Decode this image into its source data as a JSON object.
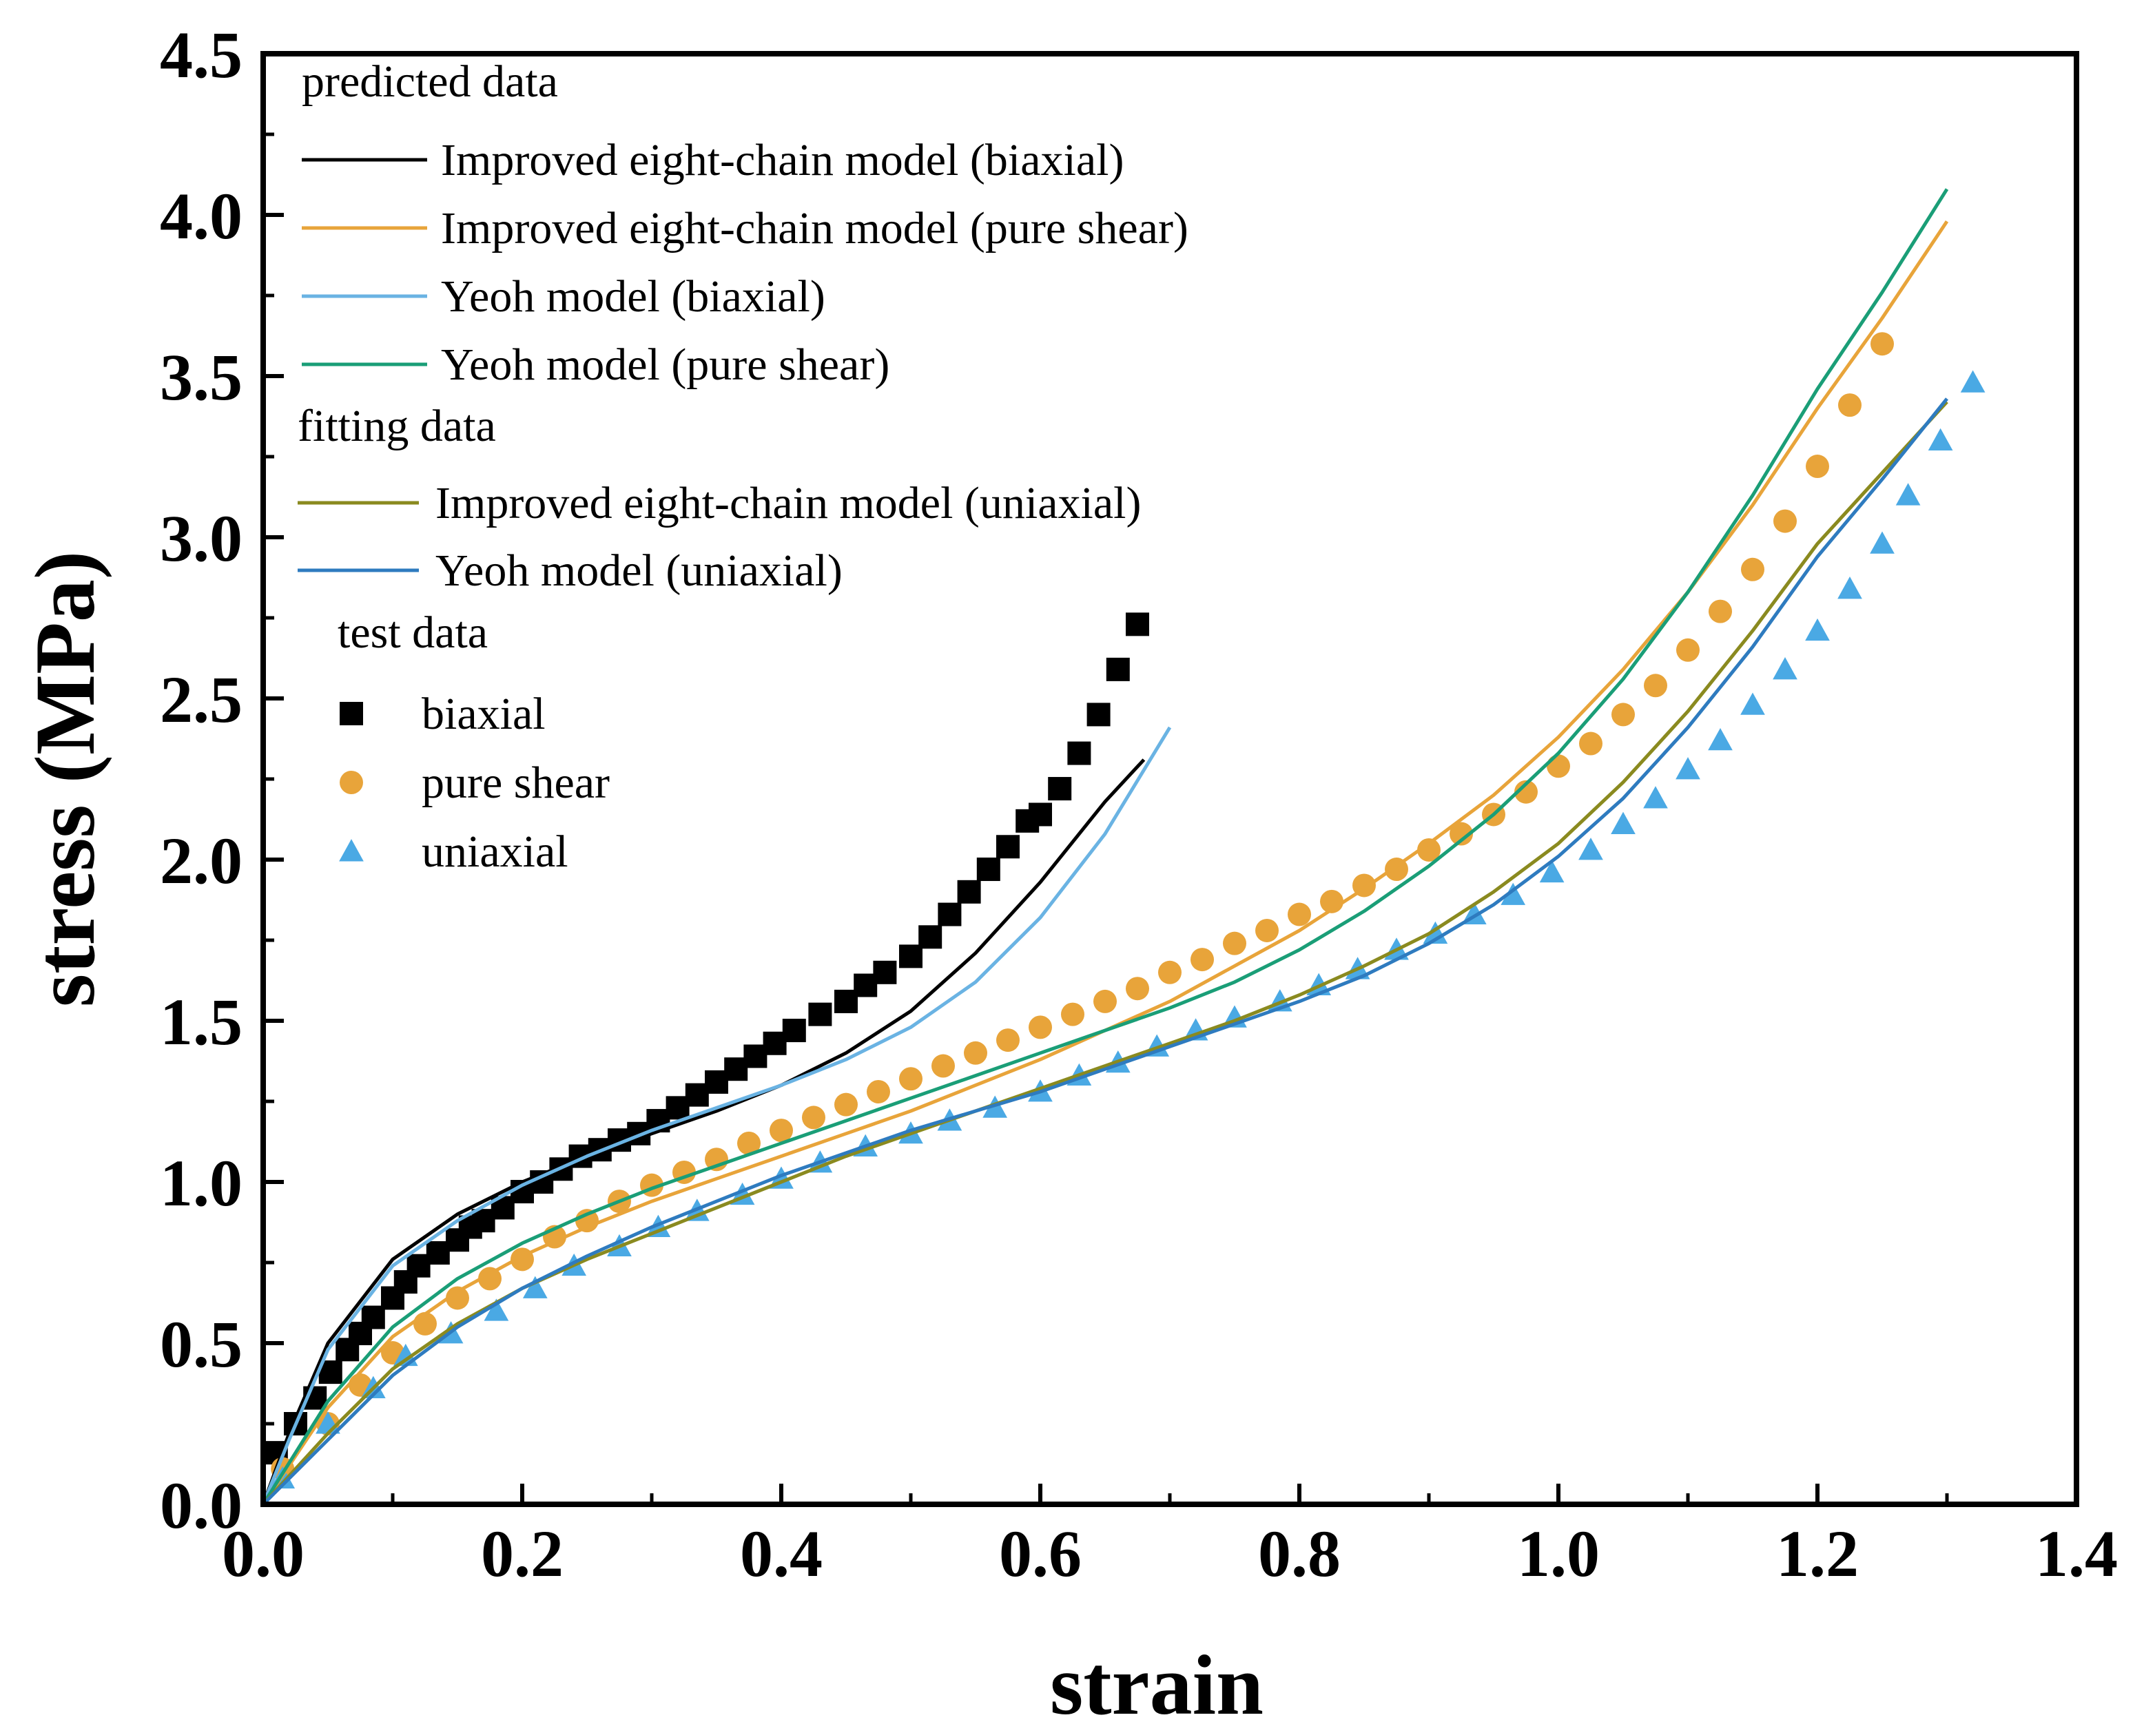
{
  "chart_data": {
    "type": "line",
    "title": "",
    "xlabel": "strain",
    "ylabel": "stress (MPa)",
    "xlim": [
      0.0,
      1.4
    ],
    "ylim": [
      0.0,
      4.5
    ],
    "x_ticks": [
      "0.0",
      "0.2",
      "0.4",
      "0.6",
      "0.8",
      "1.0",
      "1.2",
      "1.4"
    ],
    "y_ticks": [
      "0.0",
      "0.5",
      "1.0",
      "1.5",
      "2.0",
      "2.5",
      "3.0",
      "3.5",
      "4.0",
      "4.5"
    ],
    "grid": false,
    "legend_position": "top-left",
    "legend_groups": [
      {
        "title": "predicted data",
        "entries": [
          {
            "name": "Improved eight-chain model (biaxial)",
            "series": "iec_biaxial"
          },
          {
            "name": "Improved eight-chain model (pure shear)",
            "series": "iec_shear"
          },
          {
            "name": "Yeoh model (biaxial)",
            "series": "yeoh_biaxial"
          },
          {
            "name": "Yeoh model (pure shear)",
            "series": "yeoh_shear"
          }
        ]
      },
      {
        "title": "fitting data",
        "entries": [
          {
            "name": "Improved eight-chain model (uniaxial)",
            "series": "iec_uniaxial"
          },
          {
            "name": "Yeoh model (uniaxial)",
            "series": "yeoh_uniaxial"
          }
        ]
      },
      {
        "title": "test data",
        "entries": [
          {
            "name": "biaxial",
            "series": "test_biaxial"
          },
          {
            "name": "pure shear",
            "series": "test_shear"
          },
          {
            "name": "uniaxial",
            "series": "test_uniaxial"
          }
        ]
      }
    ],
    "series": [
      {
        "id": "iec_biaxial",
        "name": "Improved eight-chain model (biaxial)",
        "kind": "line",
        "color": "#000000",
        "x": [
          0.0,
          0.02,
          0.05,
          0.1,
          0.15,
          0.2,
          0.25,
          0.3,
          0.35,
          0.4,
          0.45,
          0.5,
          0.55,
          0.6,
          0.65,
          0.68
        ],
        "y": [
          0.0,
          0.22,
          0.5,
          0.76,
          0.9,
          1.0,
          1.08,
          1.15,
          1.22,
          1.3,
          1.4,
          1.53,
          1.71,
          1.93,
          2.18,
          2.31
        ]
      },
      {
        "id": "iec_shear",
        "name": "Improved eight-chain model (pure shear)",
        "kind": "line",
        "color": "#e8a43a",
        "x": [
          0.0,
          0.05,
          0.1,
          0.15,
          0.2,
          0.25,
          0.3,
          0.35,
          0.4,
          0.45,
          0.5,
          0.55,
          0.6,
          0.65,
          0.7,
          0.75,
          0.8,
          0.85,
          0.9,
          0.95,
          1.0,
          1.05,
          1.1,
          1.15,
          1.2,
          1.25,
          1.3
        ],
        "y": [
          0.0,
          0.3,
          0.52,
          0.66,
          0.77,
          0.86,
          0.94,
          1.01,
          1.08,
          1.15,
          1.22,
          1.3,
          1.38,
          1.47,
          1.56,
          1.67,
          1.78,
          1.91,
          2.05,
          2.2,
          2.38,
          2.59,
          2.83,
          3.1,
          3.4,
          3.68,
          3.98
        ]
      },
      {
        "id": "yeoh_biaxial",
        "name": "Yeoh model (biaxial)",
        "kind": "line",
        "color": "#6ab3e3",
        "x": [
          0.0,
          0.02,
          0.05,
          0.1,
          0.15,
          0.2,
          0.25,
          0.3,
          0.35,
          0.4,
          0.45,
          0.5,
          0.55,
          0.6,
          0.65,
          0.7
        ],
        "y": [
          0.0,
          0.2,
          0.48,
          0.74,
          0.88,
          0.99,
          1.08,
          1.16,
          1.23,
          1.3,
          1.38,
          1.48,
          1.62,
          1.82,
          2.08,
          2.41
        ]
      },
      {
        "id": "yeoh_shear",
        "name": "Yeoh model (pure shear)",
        "kind": "line",
        "color": "#1a9e77",
        "x": [
          0.0,
          0.05,
          0.1,
          0.15,
          0.2,
          0.25,
          0.3,
          0.35,
          0.4,
          0.45,
          0.5,
          0.55,
          0.6,
          0.65,
          0.7,
          0.75,
          0.8,
          0.85,
          0.9,
          0.95,
          1.0,
          1.05,
          1.1,
          1.15,
          1.2,
          1.25,
          1.3
        ],
        "y": [
          0.0,
          0.32,
          0.55,
          0.7,
          0.81,
          0.9,
          0.98,
          1.05,
          1.12,
          1.19,
          1.26,
          1.33,
          1.4,
          1.47,
          1.54,
          1.62,
          1.72,
          1.84,
          1.98,
          2.14,
          2.33,
          2.56,
          2.83,
          3.13,
          3.46,
          3.76,
          4.08
        ]
      },
      {
        "id": "iec_uniaxial",
        "name": "Improved eight-chain model (uniaxial)",
        "kind": "line",
        "color": "#8a8a1f",
        "x": [
          0.0,
          0.05,
          0.1,
          0.15,
          0.2,
          0.25,
          0.3,
          0.35,
          0.4,
          0.45,
          0.5,
          0.55,
          0.6,
          0.65,
          0.7,
          0.75,
          0.8,
          0.85,
          0.9,
          0.95,
          1.0,
          1.05,
          1.1,
          1.15,
          1.2,
          1.25,
          1.3
        ],
        "y": [
          0.0,
          0.22,
          0.42,
          0.56,
          0.67,
          0.76,
          0.84,
          0.92,
          1.0,
          1.08,
          1.15,
          1.22,
          1.29,
          1.36,
          1.43,
          1.5,
          1.58,
          1.67,
          1.77,
          1.9,
          2.05,
          2.24,
          2.46,
          2.71,
          2.98,
          3.2,
          3.42
        ]
      },
      {
        "id": "yeoh_uniaxial",
        "name": "Yeoh model (uniaxial)",
        "kind": "line",
        "color": "#2e7bbf",
        "x": [
          0.0,
          0.05,
          0.1,
          0.15,
          0.2,
          0.25,
          0.3,
          0.35,
          0.4,
          0.45,
          0.5,
          0.55,
          0.6,
          0.65,
          0.7,
          0.75,
          0.8,
          0.85,
          0.9,
          0.95,
          1.0,
          1.05,
          1.1,
          1.15,
          1.2,
          1.25,
          1.3
        ],
        "y": [
          0.0,
          0.2,
          0.4,
          0.55,
          0.67,
          0.77,
          0.86,
          0.94,
          1.02,
          1.09,
          1.16,
          1.22,
          1.28,
          1.35,
          1.42,
          1.49,
          1.56,
          1.64,
          1.74,
          1.86,
          2.01,
          2.19,
          2.41,
          2.66,
          2.94,
          3.18,
          3.43
        ]
      },
      {
        "id": "test_biaxial",
        "name": "biaxial",
        "kind": "square",
        "color": "#000000",
        "x": [
          0.01,
          0.025,
          0.04,
          0.052,
          0.065,
          0.075,
          0.085,
          0.1,
          0.11,
          0.12,
          0.135,
          0.15,
          0.16,
          0.17,
          0.185,
          0.2,
          0.215,
          0.23,
          0.245,
          0.26,
          0.275,
          0.29,
          0.305,
          0.32,
          0.335,
          0.35,
          0.365,
          0.38,
          0.395,
          0.41,
          0.43,
          0.45,
          0.465,
          0.48,
          0.5,
          0.515,
          0.53,
          0.545,
          0.56,
          0.575,
          0.59,
          0.6,
          0.615,
          0.63,
          0.645,
          0.66,
          0.675
        ],
        "y": [
          0.16,
          0.25,
          0.33,
          0.41,
          0.48,
          0.53,
          0.58,
          0.64,
          0.69,
          0.74,
          0.78,
          0.82,
          0.86,
          0.88,
          0.92,
          0.97,
          1.0,
          1.04,
          1.08,
          1.1,
          1.13,
          1.15,
          1.19,
          1.23,
          1.27,
          1.31,
          1.35,
          1.39,
          1.43,
          1.47,
          1.52,
          1.56,
          1.61,
          1.65,
          1.7,
          1.76,
          1.83,
          1.9,
          1.97,
          2.04,
          2.12,
          2.14,
          2.22,
          2.33,
          2.45,
          2.59,
          2.73
        ]
      },
      {
        "id": "test_shear",
        "name": "pure shear",
        "kind": "circle",
        "color": "#e8a43a",
        "x": [
          0.015,
          0.05,
          0.075,
          0.1,
          0.125,
          0.15,
          0.175,
          0.2,
          0.225,
          0.25,
          0.275,
          0.3,
          0.325,
          0.35,
          0.375,
          0.4,
          0.425,
          0.45,
          0.475,
          0.5,
          0.525,
          0.55,
          0.575,
          0.6,
          0.625,
          0.65,
          0.675,
          0.7,
          0.725,
          0.75,
          0.775,
          0.8,
          0.825,
          0.85,
          0.875,
          0.9,
          0.925,
          0.95,
          0.975,
          1.0,
          1.025,
          1.05,
          1.075,
          1.1,
          1.125,
          1.15,
          1.175,
          1.2,
          1.225,
          1.25
        ],
        "y": [
          0.11,
          0.25,
          0.37,
          0.47,
          0.56,
          0.64,
          0.7,
          0.76,
          0.83,
          0.88,
          0.94,
          0.99,
          1.03,
          1.07,
          1.12,
          1.16,
          1.2,
          1.24,
          1.28,
          1.32,
          1.36,
          1.4,
          1.44,
          1.48,
          1.52,
          1.56,
          1.6,
          1.65,
          1.69,
          1.74,
          1.78,
          1.83,
          1.87,
          1.92,
          1.97,
          2.03,
          2.08,
          2.14,
          2.21,
          2.29,
          2.36,
          2.45,
          2.54,
          2.65,
          2.77,
          2.9,
          3.05,
          3.22,
          3.41,
          3.6
        ]
      },
      {
        "id": "test_uniaxial",
        "name": "uniaxial",
        "kind": "triangle",
        "color": "#4aa9e4",
        "x": [
          0.015,
          0.05,
          0.085,
          0.11,
          0.145,
          0.18,
          0.21,
          0.24,
          0.275,
          0.305,
          0.335,
          0.37,
          0.4,
          0.43,
          0.465,
          0.5,
          0.53,
          0.565,
          0.6,
          0.63,
          0.66,
          0.69,
          0.72,
          0.75,
          0.785,
          0.815,
          0.845,
          0.875,
          0.905,
          0.935,
          0.965,
          0.995,
          1.025,
          1.05,
          1.075,
          1.1,
          1.125,
          1.15,
          1.175,
          1.2,
          1.225,
          1.25,
          1.27,
          1.295,
          1.32
        ],
        "y": [
          0.08,
          0.25,
          0.36,
          0.46,
          0.53,
          0.6,
          0.67,
          0.74,
          0.8,
          0.86,
          0.91,
          0.96,
          1.01,
          1.06,
          1.11,
          1.15,
          1.19,
          1.23,
          1.28,
          1.33,
          1.37,
          1.42,
          1.47,
          1.51,
          1.56,
          1.61,
          1.66,
          1.72,
          1.77,
          1.83,
          1.89,
          1.96,
          2.03,
          2.11,
          2.19,
          2.28,
          2.37,
          2.48,
          2.59,
          2.71,
          2.84,
          2.98,
          3.13,
          3.3,
          3.48
        ]
      }
    ]
  }
}
